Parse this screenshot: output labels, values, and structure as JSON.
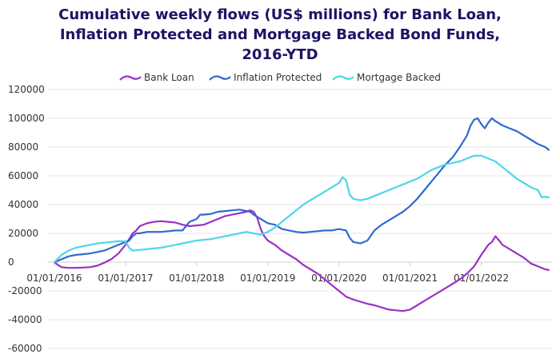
{
  "chart_data": {
    "type": "line",
    "title_lines": [
      "Cumulative weekly flows (US$ millions) for Bank Loan,",
      "Inflation Protected and Mortgage Backed Bond Funds,",
      "2016-YTD"
    ],
    "ylim": [
      -60000,
      120000
    ],
    "yticks": [
      120000,
      100000,
      80000,
      60000,
      40000,
      20000,
      0,
      -20000,
      -40000,
      -60000
    ],
    "ytick_labels": [
      "120000",
      "100000",
      "80000",
      "60000",
      "40000",
      "20000",
      "0",
      "-20000",
      "-40000",
      "-60000"
    ],
    "xlim": [
      2016.0,
      2022.95
    ],
    "xticks": [
      2016,
      2017,
      2018,
      2019,
      2020,
      2021,
      2022
    ],
    "xtick_labels": [
      "01/01/2016",
      "01/01/2017",
      "01/01/2018",
      "01/01/2019",
      "01/01/2020",
      "01/01/2021",
      "01/01/2022"
    ],
    "grid": "horizontal",
    "legend": "top",
    "series": [
      {
        "name": "Bank Loan",
        "color": "#9b30c8",
        "points": [
          [
            2016.0,
            0
          ],
          [
            2016.05,
            -2000
          ],
          [
            2016.1,
            -3500
          ],
          [
            2016.2,
            -4000
          ],
          [
            2016.3,
            -4000
          ],
          [
            2016.4,
            -3800
          ],
          [
            2016.5,
            -3500
          ],
          [
            2016.6,
            -2500
          ],
          [
            2016.7,
            -500
          ],
          [
            2016.8,
            2000
          ],
          [
            2016.9,
            6000
          ],
          [
            2017.0,
            12000
          ],
          [
            2017.05,
            16000
          ],
          [
            2017.1,
            20000
          ],
          [
            2017.15,
            22000
          ],
          [
            2017.2,
            25000
          ],
          [
            2017.3,
            27000
          ],
          [
            2017.4,
            28000
          ],
          [
            2017.5,
            28500
          ],
          [
            2017.6,
            28000
          ],
          [
            2017.7,
            27500
          ],
          [
            2017.8,
            26000
          ],
          [
            2017.9,
            25000
          ],
          [
            2018.0,
            25500
          ],
          [
            2018.1,
            26000
          ],
          [
            2018.2,
            28000
          ],
          [
            2018.3,
            30000
          ],
          [
            2018.4,
            32000
          ],
          [
            2018.5,
            33000
          ],
          [
            2018.6,
            34000
          ],
          [
            2018.7,
            35000
          ],
          [
            2018.75,
            36000
          ],
          [
            2018.8,
            35000
          ],
          [
            2018.85,
            31000
          ],
          [
            2018.9,
            23000
          ],
          [
            2018.95,
            18000
          ],
          [
            2019.0,
            15000
          ],
          [
            2019.1,
            12000
          ],
          [
            2019.2,
            8000
          ],
          [
            2019.3,
            5000
          ],
          [
            2019.4,
            2000
          ],
          [
            2019.5,
            -2000
          ],
          [
            2019.6,
            -5000
          ],
          [
            2019.7,
            -8000
          ],
          [
            2019.8,
            -12000
          ],
          [
            2019.9,
            -16000
          ],
          [
            2020.0,
            -20000
          ],
          [
            2020.1,
            -24000
          ],
          [
            2020.15,
            -25000
          ],
          [
            2020.2,
            -26000
          ],
          [
            2020.3,
            -27500
          ],
          [
            2020.4,
            -29000
          ],
          [
            2020.5,
            -30000
          ],
          [
            2020.6,
            -31500
          ],
          [
            2020.7,
            -33000
          ],
          [
            2020.8,
            -33500
          ],
          [
            2020.9,
            -34000
          ],
          [
            2021.0,
            -33000
          ],
          [
            2021.1,
            -30000
          ],
          [
            2021.2,
            -27000
          ],
          [
            2021.3,
            -24000
          ],
          [
            2021.4,
            -21000
          ],
          [
            2021.5,
            -18000
          ],
          [
            2021.6,
            -15000
          ],
          [
            2021.7,
            -12000
          ],
          [
            2021.8,
            -8000
          ],
          [
            2021.9,
            -3000
          ],
          [
            2022.0,
            5000
          ],
          [
            2022.1,
            12000
          ],
          [
            2022.15,
            14000
          ],
          [
            2022.2,
            18000
          ],
          [
            2022.25,
            15000
          ],
          [
            2022.3,
            12000
          ],
          [
            2022.4,
            9000
          ],
          [
            2022.5,
            6000
          ],
          [
            2022.6,
            3000
          ],
          [
            2022.7,
            -1000
          ],
          [
            2022.8,
            -3000
          ],
          [
            2022.9,
            -5000
          ],
          [
            2022.95,
            -5500
          ]
        ]
      },
      {
        "name": "Inflation Protected",
        "color": "#2e6bd0",
        "points": [
          [
            2016.0,
            0
          ],
          [
            2016.1,
            2000
          ],
          [
            2016.2,
            4000
          ],
          [
            2016.3,
            5000
          ],
          [
            2016.4,
            5500
          ],
          [
            2016.5,
            6000
          ],
          [
            2016.6,
            7000
          ],
          [
            2016.7,
            8000
          ],
          [
            2016.8,
            10000
          ],
          [
            2016.9,
            12000
          ],
          [
            2017.0,
            14000
          ],
          [
            2017.05,
            15000
          ],
          [
            2017.1,
            18000
          ],
          [
            2017.15,
            20000
          ],
          [
            2017.2,
            20000
          ],
          [
            2017.3,
            21000
          ],
          [
            2017.4,
            21000
          ],
          [
            2017.5,
            21000
          ],
          [
            2017.6,
            21500
          ],
          [
            2017.7,
            22000
          ],
          [
            2017.8,
            22000
          ],
          [
            2017.85,
            25000
          ],
          [
            2017.9,
            28000
          ],
          [
            2018.0,
            30000
          ],
          [
            2018.05,
            33000
          ],
          [
            2018.1,
            33000
          ],
          [
            2018.2,
            33500
          ],
          [
            2018.3,
            35000
          ],
          [
            2018.4,
            35500
          ],
          [
            2018.5,
            36000
          ],
          [
            2018.6,
            36500
          ],
          [
            2018.7,
            35500
          ],
          [
            2018.75,
            35000
          ],
          [
            2018.8,
            33000
          ],
          [
            2018.9,
            30000
          ],
          [
            2019.0,
            27000
          ],
          [
            2019.1,
            26000
          ],
          [
            2019.2,
            23000
          ],
          [
            2019.3,
            22000
          ],
          [
            2019.4,
            21000
          ],
          [
            2019.5,
            20500
          ],
          [
            2019.6,
            21000
          ],
          [
            2019.7,
            21500
          ],
          [
            2019.8,
            22000
          ],
          [
            2019.9,
            22000
          ],
          [
            2020.0,
            23000
          ],
          [
            2020.1,
            22000
          ],
          [
            2020.15,
            17000
          ],
          [
            2020.2,
            14000
          ],
          [
            2020.3,
            13000
          ],
          [
            2020.4,
            15000
          ],
          [
            2020.5,
            22000
          ],
          [
            2020.6,
            26000
          ],
          [
            2020.7,
            29000
          ],
          [
            2020.8,
            32000
          ],
          [
            2020.9,
            35000
          ],
          [
            2021.0,
            39000
          ],
          [
            2021.1,
            44000
          ],
          [
            2021.2,
            50000
          ],
          [
            2021.3,
            56000
          ],
          [
            2021.4,
            62000
          ],
          [
            2021.5,
            68000
          ],
          [
            2021.6,
            73000
          ],
          [
            2021.7,
            80000
          ],
          [
            2021.8,
            88000
          ],
          [
            2021.85,
            95000
          ],
          [
            2021.9,
            99000
          ],
          [
            2021.95,
            100000
          ],
          [
            2022.0,
            96000
          ],
          [
            2022.05,
            93000
          ],
          [
            2022.1,
            97000
          ],
          [
            2022.15,
            100000
          ],
          [
            2022.2,
            98000
          ],
          [
            2022.3,
            95000
          ],
          [
            2022.4,
            93000
          ],
          [
            2022.5,
            91000
          ],
          [
            2022.6,
            88000
          ],
          [
            2022.7,
            85000
          ],
          [
            2022.8,
            82000
          ],
          [
            2022.9,
            80000
          ],
          [
            2022.95,
            78000
          ]
        ]
      },
      {
        "name": "Mortgage Backed",
        "color": "#4fd5ea",
        "points": [
          [
            2016.0,
            0
          ],
          [
            2016.1,
            5000
          ],
          [
            2016.2,
            8000
          ],
          [
            2016.3,
            10000
          ],
          [
            2016.4,
            11000
          ],
          [
            2016.5,
            12000
          ],
          [
            2016.6,
            13000
          ],
          [
            2016.7,
            13500
          ],
          [
            2016.8,
            14000
          ],
          [
            2016.9,
            14500
          ],
          [
            2017.0,
            14500
          ],
          [
            2017.05,
            10000
          ],
          [
            2017.1,
            8000
          ],
          [
            2017.2,
            8500
          ],
          [
            2017.3,
            9000
          ],
          [
            2017.4,
            9500
          ],
          [
            2017.5,
            10000
          ],
          [
            2017.6,
            11000
          ],
          [
            2017.7,
            12000
          ],
          [
            2017.8,
            13000
          ],
          [
            2017.9,
            14000
          ],
          [
            2018.0,
            15000
          ],
          [
            2018.1,
            15500
          ],
          [
            2018.2,
            16000
          ],
          [
            2018.3,
            17000
          ],
          [
            2018.4,
            18000
          ],
          [
            2018.5,
            19000
          ],
          [
            2018.6,
            20000
          ],
          [
            2018.7,
            21000
          ],
          [
            2018.8,
            20000
          ],
          [
            2018.9,
            19000
          ],
          [
            2019.0,
            21000
          ],
          [
            2019.1,
            24000
          ],
          [
            2019.2,
            28000
          ],
          [
            2019.3,
            32000
          ],
          [
            2019.4,
            36000
          ],
          [
            2019.5,
            40000
          ],
          [
            2019.6,
            43000
          ],
          [
            2019.7,
            46000
          ],
          [
            2019.8,
            49000
          ],
          [
            2019.9,
            52000
          ],
          [
            2020.0,
            55000
          ],
          [
            2020.05,
            59000
          ],
          [
            2020.1,
            57000
          ],
          [
            2020.15,
            47000
          ],
          [
            2020.2,
            44000
          ],
          [
            2020.3,
            43000
          ],
          [
            2020.4,
            44000
          ],
          [
            2020.5,
            46000
          ],
          [
            2020.6,
            48000
          ],
          [
            2020.7,
            50000
          ],
          [
            2020.8,
            52000
          ],
          [
            2020.9,
            54000
          ],
          [
            2021.0,
            56000
          ],
          [
            2021.1,
            58000
          ],
          [
            2021.2,
            61000
          ],
          [
            2021.3,
            64000
          ],
          [
            2021.4,
            66000
          ],
          [
            2021.5,
            68000
          ],
          [
            2021.6,
            69000
          ],
          [
            2021.7,
            70000
          ],
          [
            2021.8,
            72000
          ],
          [
            2021.9,
            74000
          ],
          [
            2022.0,
            74000
          ],
          [
            2022.1,
            72000
          ],
          [
            2022.2,
            70000
          ],
          [
            2022.3,
            66000
          ],
          [
            2022.4,
            62000
          ],
          [
            2022.5,
            58000
          ],
          [
            2022.6,
            55000
          ],
          [
            2022.7,
            52000
          ],
          [
            2022.8,
            50000
          ],
          [
            2022.85,
            45000
          ],
          [
            2022.9,
            45500
          ],
          [
            2022.95,
            45000
          ]
        ]
      }
    ]
  }
}
